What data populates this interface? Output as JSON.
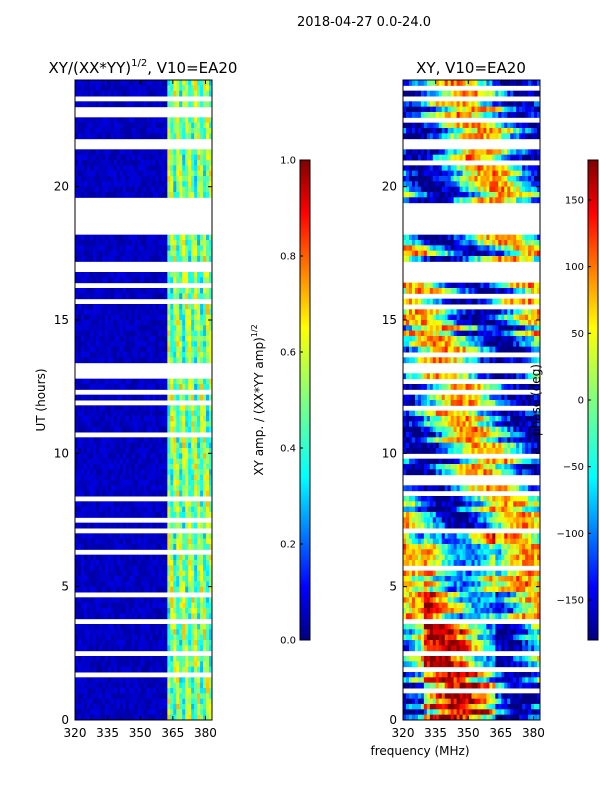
{
  "suptitle": "2018-04-27 0.0-24.0",
  "chart_data": [
    {
      "type": "heatmap",
      "title": "XY/(XX*YY)",
      "title_exponent": "1/2",
      "title_suffix": ", V10=EA20",
      "xlabel": "",
      "ylabel": "UT (hours)",
      "xlim": [
        320,
        383
      ],
      "ylim": [
        0,
        24
      ],
      "xticks": [
        "320",
        "335",
        "350",
        "365",
        "380"
      ],
      "xtick_values": [
        320,
        335,
        350,
        365,
        380
      ],
      "yticks": [
        "0",
        "5",
        "10",
        "15",
        "20"
      ],
      "ytick_values": [
        0,
        5,
        10,
        15,
        20
      ],
      "colorbar": {
        "label": "XY amp. / (XX*YY amp)",
        "label_exponent": "1/2",
        "range": [
          0.0,
          1.0
        ],
        "ticks": [
          "0.0",
          "0.2",
          "0.4",
          "0.6",
          "0.8",
          "1.0"
        ],
        "tick_values": [
          0.0,
          0.2,
          0.4,
          0.6,
          0.8,
          1.0
        ],
        "colormap": "jet"
      },
      "flagged_ut_bands": [
        [
          18.2,
          19.3
        ],
        [
          21.4,
          21.7
        ],
        [
          16.9,
          17.2
        ],
        [
          3.6,
          3.8
        ],
        [
          13.1,
          13.3
        ],
        [
          7.1,
          7.3
        ]
      ]
    },
    {
      "type": "heatmap",
      "title": "XY, V10=EA20",
      "xlabel": "frequency (MHz)",
      "ylabel": "",
      "xlim": [
        320,
        383
      ],
      "ylim": [
        0,
        24
      ],
      "xticks": [
        "320",
        "335",
        "350",
        "365",
        "380"
      ],
      "xtick_values": [
        320,
        335,
        350,
        365,
        380
      ],
      "yticks": [
        "0",
        "5",
        "10",
        "15",
        "20"
      ],
      "ytick_values": [
        0,
        5,
        10,
        15,
        20
      ],
      "colorbar": {
        "label": "phase (deg)",
        "range": [
          -180,
          180
        ],
        "ticks": [
          "150",
          "100",
          "50",
          "0",
          "−50",
          "−100",
          "−150"
        ],
        "tick_values": [
          150,
          100,
          50,
          0,
          -50,
          -100,
          -150
        ],
        "colormap": "jet"
      },
      "flagged_ut_bands": [
        [
          18.2,
          19.3
        ],
        [
          21.4,
          21.7
        ],
        [
          16.9,
          17.2
        ],
        [
          3.6,
          3.8
        ],
        [
          13.1,
          13.3
        ],
        [
          7.1,
          7.3
        ]
      ]
    }
  ]
}
